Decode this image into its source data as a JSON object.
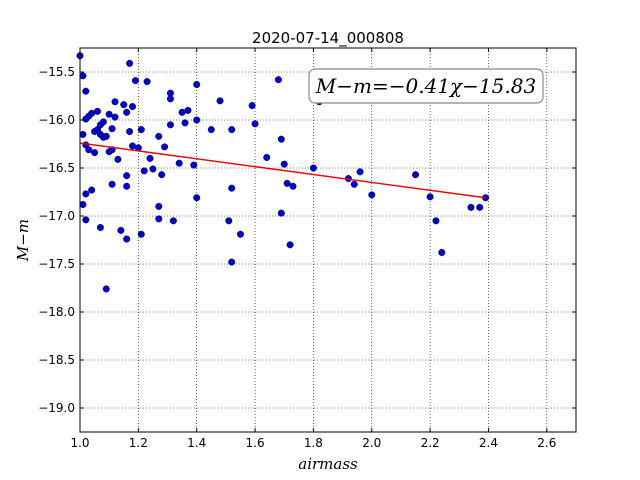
{
  "chart_data": {
    "type": "scatter",
    "title": "2020-07-14_000808",
    "xlabel": "airmass",
    "ylabel": "M−m",
    "xlim": [
      1.0,
      2.7
    ],
    "ylim": [
      -19.25,
      -15.25
    ],
    "x_ticks": [
      "1.0",
      "1.2",
      "1.4",
      "1.6",
      "1.8",
      "2.0",
      "2.2",
      "2.4",
      "2.6"
    ],
    "y_ticks": [
      "−15.5",
      "−16.0",
      "−16.5",
      "−17.0",
      "−17.5",
      "−18.0",
      "−18.5",
      "−19.0"
    ],
    "x_tick_values": [
      1.0,
      1.2,
      1.4,
      1.6,
      1.8,
      2.0,
      2.2,
      2.4,
      2.6
    ],
    "y_tick_values": [
      -15.5,
      -16.0,
      -16.5,
      -17.0,
      -17.5,
      -18.0,
      -18.5,
      -19.0
    ],
    "grid": true,
    "annotation": "M−m=−0.41χ−15.83",
    "fit_line": {
      "slope": -0.41,
      "intercept": -15.83,
      "x_range": [
        1.0,
        2.39
      ]
    },
    "colors": {
      "points": "#0000cc",
      "fit": "#ee0000"
    },
    "points": [
      {
        "x": 1.0,
        "y": -15.33
      },
      {
        "x": 1.01,
        "y": -15.54
      },
      {
        "x": 1.02,
        "y": -15.7
      },
      {
        "x": 1.03,
        "y": -15.96
      },
      {
        "x": 1.02,
        "y": -15.99
      },
      {
        "x": 1.04,
        "y": -15.93
      },
      {
        "x": 1.06,
        "y": -15.91
      },
      {
        "x": 1.01,
        "y": -16.15
      },
      {
        "x": 1.02,
        "y": -16.26
      },
      {
        "x": 1.03,
        "y": -16.31
      },
      {
        "x": 1.05,
        "y": -16.34
      },
      {
        "x": 1.05,
        "y": -16.12
      },
      {
        "x": 1.06,
        "y": -16.1
      },
      {
        "x": 1.07,
        "y": -16.05
      },
      {
        "x": 1.08,
        "y": -16.02
      },
      {
        "x": 1.07,
        "y": -16.15
      },
      {
        "x": 1.08,
        "y": -16.18
      },
      {
        "x": 1.09,
        "y": -16.17
      },
      {
        "x": 1.1,
        "y": -15.94
      },
      {
        "x": 1.11,
        "y": -16.09
      },
      {
        "x": 1.12,
        "y": -15.81
      },
      {
        "x": 1.12,
        "y": -15.97
      },
      {
        "x": 1.1,
        "y": -16.33
      },
      {
        "x": 1.11,
        "y": -16.31
      },
      {
        "x": 1.13,
        "y": -16.41
      },
      {
        "x": 1.15,
        "y": -15.84
      },
      {
        "x": 1.16,
        "y": -15.92
      },
      {
        "x": 1.17,
        "y": -15.41
      },
      {
        "x": 1.18,
        "y": -15.86
      },
      {
        "x": 1.19,
        "y": -15.59
      },
      {
        "x": 1.17,
        "y": -16.12
      },
      {
        "x": 1.18,
        "y": -16.27
      },
      {
        "x": 1.2,
        "y": -16.29
      },
      {
        "x": 1.21,
        "y": -16.1
      },
      {
        "x": 1.23,
        "y": -15.6
      },
      {
        "x": 1.22,
        "y": -16.53
      },
      {
        "x": 1.24,
        "y": -16.4
      },
      {
        "x": 1.25,
        "y": -16.51
      },
      {
        "x": 1.27,
        "y": -16.17
      },
      {
        "x": 1.28,
        "y": -16.57
      },
      {
        "x": 1.29,
        "y": -16.28
      },
      {
        "x": 1.02,
        "y": -16.77
      },
      {
        "x": 1.04,
        "y": -16.73
      },
      {
        "x": 1.01,
        "y": -16.88
      },
      {
        "x": 1.02,
        "y": -17.04
      },
      {
        "x": 1.07,
        "y": -17.12
      },
      {
        "x": 1.11,
        "y": -16.67
      },
      {
        "x": 1.16,
        "y": -16.58
      },
      {
        "x": 1.16,
        "y": -16.69
      },
      {
        "x": 1.14,
        "y": -17.15
      },
      {
        "x": 1.16,
        "y": -17.24
      },
      {
        "x": 1.21,
        "y": -17.19
      },
      {
        "x": 1.27,
        "y": -16.9
      },
      {
        "x": 1.27,
        "y": -17.03
      },
      {
        "x": 1.09,
        "y": -17.76
      },
      {
        "x": 1.31,
        "y": -15.72
      },
      {
        "x": 1.31,
        "y": -15.78
      },
      {
        "x": 1.31,
        "y": -16.05
      },
      {
        "x": 1.34,
        "y": -16.45
      },
      {
        "x": 1.35,
        "y": -15.92
      },
      {
        "x": 1.36,
        "y": -16.03
      },
      {
        "x": 1.37,
        "y": -15.9
      },
      {
        "x": 1.4,
        "y": -15.63
      },
      {
        "x": 1.4,
        "y": -16.0
      },
      {
        "x": 1.39,
        "y": -16.47
      },
      {
        "x": 1.4,
        "y": -16.81
      },
      {
        "x": 1.32,
        "y": -17.05
      },
      {
        "x": 1.45,
        "y": -16.1
      },
      {
        "x": 1.48,
        "y": -15.8
      },
      {
        "x": 1.51,
        "y": -17.05
      },
      {
        "x": 1.52,
        "y": -16.71
      },
      {
        "x": 1.52,
        "y": -16.1
      },
      {
        "x": 1.52,
        "y": -17.48
      },
      {
        "x": 1.55,
        "y": -17.19
      },
      {
        "x": 1.59,
        "y": -15.85
      },
      {
        "x": 1.6,
        "y": -16.04
      },
      {
        "x": 1.64,
        "y": -16.39
      },
      {
        "x": 1.68,
        "y": -15.58
      },
      {
        "x": 1.69,
        "y": -16.2
      },
      {
        "x": 1.7,
        "y": -16.46
      },
      {
        "x": 1.71,
        "y": -16.66
      },
      {
        "x": 1.73,
        "y": -16.69
      },
      {
        "x": 1.69,
        "y": -16.97
      },
      {
        "x": 1.72,
        "y": -17.3
      },
      {
        "x": 1.8,
        "y": -16.5
      },
      {
        "x": 1.82,
        "y": -15.81
      },
      {
        "x": 1.92,
        "y": -16.61
      },
      {
        "x": 1.94,
        "y": -16.67
      },
      {
        "x": 1.96,
        "y": -16.54
      },
      {
        "x": 2.0,
        "y": -16.78
      },
      {
        "x": 2.15,
        "y": -16.57
      },
      {
        "x": 2.2,
        "y": -16.8
      },
      {
        "x": 2.22,
        "y": -17.05
      },
      {
        "x": 2.24,
        "y": -17.38
      },
      {
        "x": 2.34,
        "y": -16.91
      },
      {
        "x": 2.37,
        "y": -16.91
      },
      {
        "x": 2.39,
        "y": -16.81
      }
    ]
  }
}
